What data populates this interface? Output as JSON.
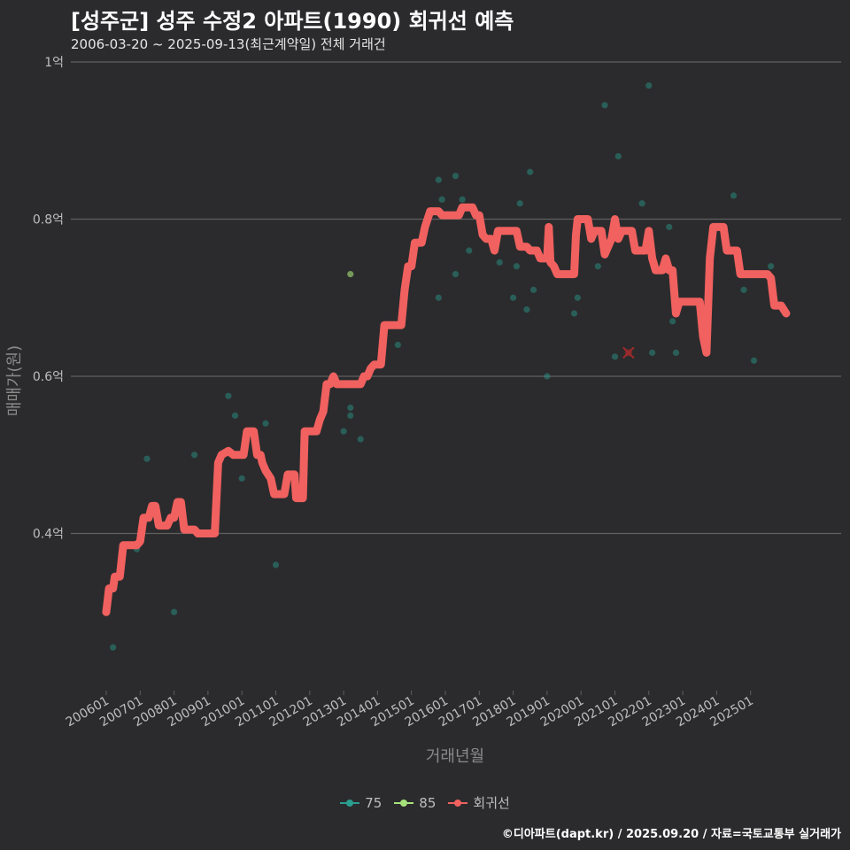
{
  "title": "[성주군] 성주 수정2 아파트(1990) 회귀선 예측",
  "subtitle": "2006-03-20 ~ 2025-09-13(최근계약일) 전체 거래건",
  "caption": "©디아파트(dapt.kr) / 2025.09.20 / 자료=국토교통부 실거래가",
  "colors": {
    "background": "#2b2b2d",
    "grid": "#5f5f62",
    "s75": "#2a9d8f",
    "s85": "#a6e27a",
    "regression": "#f0615f",
    "text": "#bdbdbd"
  },
  "chart_data": {
    "type": "scatter+line",
    "xlabel": "거래년월",
    "ylabel": "매매가(원)",
    "xlim": [
      2005.9,
      2025.95
    ],
    "ylim": [
      0.2,
      1.0
    ],
    "y_ticks": [
      {
        "value": 0.4,
        "label": "0.4억"
      },
      {
        "value": 0.6,
        "label": "0.6억"
      },
      {
        "value": 0.8,
        "label": "0.8억"
      },
      {
        "value": 1.0,
        "label": "1억"
      }
    ],
    "x_ticks": [
      {
        "value": 2006,
        "label": "200601"
      },
      {
        "value": 2007,
        "label": "200701"
      },
      {
        "value": 2008,
        "label": "200801"
      },
      {
        "value": 2009,
        "label": "200901"
      },
      {
        "value": 2010,
        "label": "201001"
      },
      {
        "value": 2011,
        "label": "201101"
      },
      {
        "value": 2012,
        "label": "201201"
      },
      {
        "value": 2013,
        "label": "201301"
      },
      {
        "value": 2014,
        "label": "201401"
      },
      {
        "value": 2015,
        "label": "201501"
      },
      {
        "value": 2016,
        "label": "201601"
      },
      {
        "value": 2017,
        "label": "201701"
      },
      {
        "value": 2018,
        "label": "201801"
      },
      {
        "value": 2019,
        "label": "201901"
      },
      {
        "value": 2020,
        "label": "202001"
      },
      {
        "value": 2021,
        "label": "202101"
      },
      {
        "value": 2022,
        "label": "202201"
      },
      {
        "value": 2023,
        "label": "202301"
      },
      {
        "value": 2024,
        "label": "202401"
      },
      {
        "value": 2025,
        "label": "202501"
      }
    ],
    "legend": [
      {
        "key": "s75",
        "label": "75",
        "type": "point"
      },
      {
        "key": "s85",
        "label": "85",
        "type": "point"
      },
      {
        "key": "regression",
        "label": "회귀선",
        "type": "line"
      }
    ],
    "series": [
      {
        "name": "75",
        "key": "s75",
        "points": [
          [
            2006.2,
            0.255
          ],
          [
            2006.9,
            0.38
          ],
          [
            2007.2,
            0.495
          ],
          [
            2008.0,
            0.3
          ],
          [
            2008.6,
            0.5
          ],
          [
            2009.6,
            0.575
          ],
          [
            2009.8,
            0.55
          ],
          [
            2010.0,
            0.47
          ],
          [
            2010.7,
            0.54
          ],
          [
            2011.0,
            0.36
          ],
          [
            2013.0,
            0.53
          ],
          [
            2013.2,
            0.55
          ],
          [
            2013.2,
            0.56
          ],
          [
            2013.5,
            0.52
          ],
          [
            2014.6,
            0.64
          ],
          [
            2015.8,
            0.7
          ],
          [
            2015.8,
            0.85
          ],
          [
            2015.9,
            0.825
          ],
          [
            2016.3,
            0.73
          ],
          [
            2016.3,
            0.855
          ],
          [
            2016.5,
            0.825
          ],
          [
            2016.7,
            0.76
          ],
          [
            2017.6,
            0.745
          ],
          [
            2018.0,
            0.7
          ],
          [
            2018.1,
            0.74
          ],
          [
            2018.2,
            0.82
          ],
          [
            2018.4,
            0.685
          ],
          [
            2018.5,
            0.86
          ],
          [
            2018.6,
            0.71
          ],
          [
            2019.0,
            0.6
          ],
          [
            2019.8,
            0.68
          ],
          [
            2019.9,
            0.7
          ],
          [
            2020.5,
            0.74
          ],
          [
            2020.7,
            0.945
          ],
          [
            2021.0,
            0.625
          ],
          [
            2021.1,
            0.88
          ],
          [
            2021.8,
            0.82
          ],
          [
            2022.0,
            0.97
          ],
          [
            2022.1,
            0.63
          ],
          [
            2022.6,
            0.79
          ],
          [
            2022.7,
            0.67
          ],
          [
            2022.8,
            0.63
          ],
          [
            2024.5,
            0.83
          ],
          [
            2024.8,
            0.71
          ],
          [
            2025.1,
            0.62
          ],
          [
            2025.6,
            0.74
          ]
        ]
      },
      {
        "name": "85",
        "key": "s85",
        "points": [
          [
            2013.2,
            0.73
          ]
        ]
      },
      {
        "name": "회귀선",
        "key": "regression",
        "points": [
          [
            2006.0,
            0.3
          ],
          [
            2006.08,
            0.33
          ],
          [
            2006.2,
            0.33
          ],
          [
            2006.25,
            0.345
          ],
          [
            2006.4,
            0.345
          ],
          [
            2006.5,
            0.385
          ],
          [
            2006.9,
            0.385
          ],
          [
            2007.0,
            0.39
          ],
          [
            2007.1,
            0.42
          ],
          [
            2007.25,
            0.42
          ],
          [
            2007.35,
            0.435
          ],
          [
            2007.45,
            0.435
          ],
          [
            2007.55,
            0.41
          ],
          [
            2007.8,
            0.41
          ],
          [
            2007.9,
            0.42
          ],
          [
            2008.0,
            0.42
          ],
          [
            2008.1,
            0.44
          ],
          [
            2008.2,
            0.44
          ],
          [
            2008.3,
            0.405
          ],
          [
            2008.6,
            0.405
          ],
          [
            2008.7,
            0.4
          ],
          [
            2009.2,
            0.4
          ],
          [
            2009.3,
            0.49
          ],
          [
            2009.4,
            0.5
          ],
          [
            2009.6,
            0.505
          ],
          [
            2009.75,
            0.5
          ],
          [
            2010.05,
            0.5
          ],
          [
            2010.15,
            0.53
          ],
          [
            2010.35,
            0.53
          ],
          [
            2010.45,
            0.5
          ],
          [
            2010.55,
            0.5
          ],
          [
            2010.6,
            0.49
          ],
          [
            2010.7,
            0.48
          ],
          [
            2010.85,
            0.47
          ],
          [
            2010.95,
            0.45
          ],
          [
            2011.15,
            0.45
          ],
          [
            2011.25,
            0.45
          ],
          [
            2011.35,
            0.475
          ],
          [
            2011.55,
            0.475
          ],
          [
            2011.6,
            0.445
          ],
          [
            2011.8,
            0.445
          ],
          [
            2011.85,
            0.53
          ],
          [
            2012.2,
            0.53
          ],
          [
            2012.3,
            0.545
          ],
          [
            2012.4,
            0.555
          ],
          [
            2012.5,
            0.59
          ],
          [
            2012.6,
            0.59
          ],
          [
            2012.7,
            0.6
          ],
          [
            2012.8,
            0.59
          ],
          [
            2013.3,
            0.59
          ],
          [
            2013.5,
            0.59
          ],
          [
            2013.6,
            0.6
          ],
          [
            2013.7,
            0.6
          ],
          [
            2013.8,
            0.61
          ],
          [
            2013.9,
            0.615
          ],
          [
            2014.1,
            0.615
          ],
          [
            2014.2,
            0.665
          ],
          [
            2014.5,
            0.665
          ],
          [
            2014.7,
            0.665
          ],
          [
            2014.8,
            0.71
          ],
          [
            2014.9,
            0.74
          ],
          [
            2015.0,
            0.74
          ],
          [
            2015.1,
            0.77
          ],
          [
            2015.3,
            0.77
          ],
          [
            2015.4,
            0.79
          ],
          [
            2015.55,
            0.81
          ],
          [
            2015.8,
            0.81
          ],
          [
            2015.9,
            0.805
          ],
          [
            2016.4,
            0.805
          ],
          [
            2016.5,
            0.815
          ],
          [
            2016.8,
            0.815
          ],
          [
            2016.9,
            0.805
          ],
          [
            2017.0,
            0.805
          ],
          [
            2017.1,
            0.78
          ],
          [
            2017.2,
            0.775
          ],
          [
            2017.35,
            0.775
          ],
          [
            2017.45,
            0.76
          ],
          [
            2017.55,
            0.785
          ],
          [
            2017.7,
            0.785
          ],
          [
            2017.8,
            0.785
          ],
          [
            2018.1,
            0.785
          ],
          [
            2018.2,
            0.765
          ],
          [
            2018.4,
            0.765
          ],
          [
            2018.5,
            0.76
          ],
          [
            2018.7,
            0.76
          ],
          [
            2018.8,
            0.75
          ],
          [
            2019.0,
            0.75
          ],
          [
            2019.05,
            0.79
          ],
          [
            2019.1,
            0.745
          ],
          [
            2019.2,
            0.74
          ],
          [
            2019.3,
            0.73
          ],
          [
            2019.8,
            0.73
          ],
          [
            2019.85,
            0.78
          ],
          [
            2019.9,
            0.8
          ],
          [
            2020.2,
            0.8
          ],
          [
            2020.3,
            0.775
          ],
          [
            2020.4,
            0.785
          ],
          [
            2020.6,
            0.785
          ],
          [
            2020.7,
            0.755
          ],
          [
            2020.8,
            0.765
          ],
          [
            2020.9,
            0.775
          ],
          [
            2021.0,
            0.8
          ],
          [
            2021.1,
            0.775
          ],
          [
            2021.2,
            0.785
          ],
          [
            2021.5,
            0.785
          ],
          [
            2021.6,
            0.76
          ],
          [
            2021.9,
            0.76
          ],
          [
            2022.0,
            0.785
          ],
          [
            2022.1,
            0.75
          ],
          [
            2022.2,
            0.735
          ],
          [
            2022.4,
            0.735
          ],
          [
            2022.5,
            0.75
          ],
          [
            2022.6,
            0.735
          ],
          [
            2022.7,
            0.735
          ],
          [
            2022.8,
            0.68
          ],
          [
            2022.9,
            0.695
          ],
          [
            2023.5,
            0.695
          ],
          [
            2023.6,
            0.65
          ],
          [
            2023.7,
            0.63
          ],
          [
            2023.8,
            0.75
          ],
          [
            2023.9,
            0.79
          ],
          [
            2024.2,
            0.79
          ],
          [
            2024.3,
            0.76
          ],
          [
            2024.6,
            0.76
          ],
          [
            2024.7,
            0.73
          ],
          [
            2024.8,
            0.73
          ],
          [
            2025.1,
            0.73
          ],
          [
            2025.2,
            0.73
          ],
          [
            2025.5,
            0.73
          ],
          [
            2025.6,
            0.725
          ],
          [
            2025.7,
            0.69
          ],
          [
            2025.9,
            0.69
          ],
          [
            2026.05,
            0.68
          ]
        ]
      }
    ],
    "highlight": {
      "x": 2021.4,
      "y": 0.63,
      "marker": "x"
    }
  }
}
